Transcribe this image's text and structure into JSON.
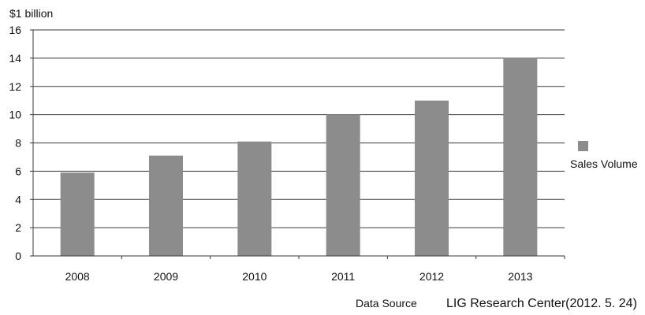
{
  "chart_data": {
    "type": "bar",
    "title": "",
    "ylabel": "$1 billion",
    "xlabel": "",
    "categories": [
      "2008",
      "2009",
      "2010",
      "2011",
      "2012",
      "2013"
    ],
    "series": [
      {
        "name": "Sales Volume",
        "values": [
          5.9,
          7.1,
          8.1,
          10.0,
          11.0,
          14.0
        ],
        "color": "#8c8c8c"
      }
    ],
    "ylim": [
      0,
      16
    ],
    "yticks": [
      0,
      2,
      4,
      6,
      8,
      10,
      12,
      14,
      16
    ],
    "ytick_labels": [
      "0",
      "2",
      "4",
      "6",
      "8",
      "10",
      "12",
      "14",
      "16"
    ],
    "grid": true,
    "grid_axis": "y",
    "legend_position": "right"
  },
  "source": {
    "label": "Data Source",
    "text": "LIG Research Center(2012. 5. 24)"
  }
}
